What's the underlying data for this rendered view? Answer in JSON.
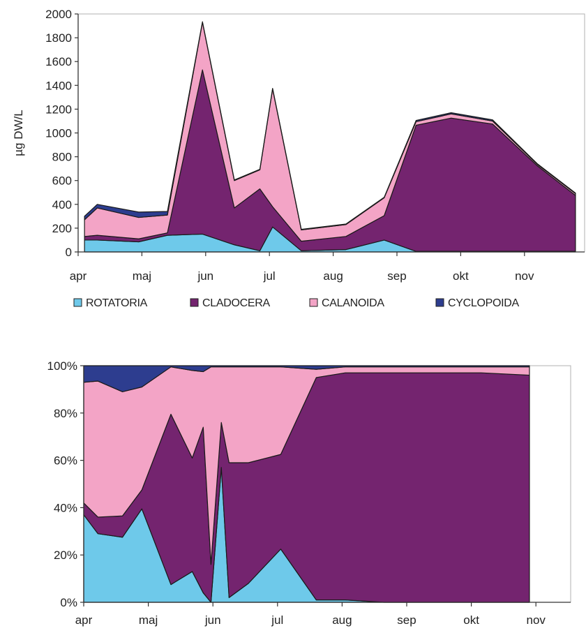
{
  "chart_data": [
    {
      "type": "area",
      "stacked": true,
      "ylabel": "µg DW/L",
      "ylim": [
        0,
        2000
      ],
      "yticks": [
        "0",
        "200",
        "400",
        "600",
        "800",
        "1000",
        "1200",
        "1400",
        "1600",
        "1800",
        "2000"
      ],
      "month_labels": [
        "apr",
        "maj",
        "jun",
        "jul",
        "aug",
        "sep",
        "okt",
        "nov"
      ],
      "x": [
        0.1,
        0.3,
        0.95,
        1.4,
        1.95,
        2.45,
        2.85,
        3.05,
        3.5,
        4.2,
        4.8,
        5.3,
        5.85,
        6.5,
        7.2,
        7.8
      ],
      "series": [
        {
          "name": "ROTATORIA",
          "color": "#6ec9ea",
          "values": [
            100,
            100,
            85,
            140,
            150,
            60,
            10,
            210,
            10,
            20,
            100,
            5,
            5,
            5,
            5,
            5
          ]
        },
        {
          "name": "CLADOCERA",
          "color": "#74246f",
          "values": [
            30,
            40,
            25,
            20,
            1380,
            310,
            520,
            170,
            80,
            110,
            205,
            1060,
            1120,
            1070,
            720,
            470
          ]
        },
        {
          "name": "CALANOIDA",
          "color": "#f3a4c6",
          "values": [
            140,
            230,
            180,
            150,
            400,
            230,
            160,
            990,
            95,
            100,
            150,
            30,
            35,
            25,
            12,
            15
          ]
        },
        {
          "name": "CYCLOPOIDA",
          "color": "#2d3d8f",
          "values": [
            30,
            30,
            45,
            30,
            5,
            5,
            5,
            5,
            5,
            5,
            5,
            10,
            10,
            10,
            5,
            5
          ]
        }
      ],
      "legend_position": "bottom"
    },
    {
      "type": "area",
      "stacked": true,
      "normalized": true,
      "ylim": [
        0,
        100
      ],
      "yticks": [
        "0%",
        "20%",
        "40%",
        "60%",
        "80%",
        "100%"
      ],
      "month_labels": [
        "apr",
        "maj",
        "jun",
        "jul",
        "aug",
        "sep",
        "okt",
        "nov"
      ],
      "x": [
        0.0,
        0.22,
        0.6,
        0.9,
        1.35,
        1.68,
        1.85,
        1.97,
        2.13,
        2.25,
        2.55,
        3.05,
        3.6,
        4.05,
        4.65,
        5.25,
        6.15,
        6.9
      ],
      "series": [
        {
          "name": "ROTATORIA",
          "color": "#6ec9ea",
          "values": [
            37,
            29,
            27.5,
            39.5,
            7.5,
            13,
            4,
            0,
            57,
            2,
            8,
            22.5,
            1,
            1,
            0,
            0,
            0,
            0
          ]
        },
        {
          "name": "CLADOCERA",
          "color": "#74246f",
          "values": [
            5,
            7,
            9,
            8,
            72,
            48,
            70,
            16,
            19,
            57,
            51,
            40,
            94,
            96,
            97,
            97,
            97,
            96
          ]
        },
        {
          "name": "CALANOIDA",
          "color": "#f3a4c6",
          "values": [
            51,
            57.5,
            52.5,
            43.5,
            20,
            37,
            23.5,
            83.5,
            23.5,
            40.5,
            40.5,
            37,
            3.5,
            2.5,
            2.5,
            2.5,
            2.5,
            3.5
          ]
        },
        {
          "name": "CYCLOPOIDA",
          "color": "#2d3d8f",
          "values": [
            7,
            6.5,
            11,
            9,
            0.5,
            2,
            2.5,
            0.5,
            0.5,
            0.5,
            0.5,
            0.5,
            1.5,
            0.5,
            0.5,
            0.5,
            0.5,
            0.5
          ]
        }
      ]
    }
  ]
}
